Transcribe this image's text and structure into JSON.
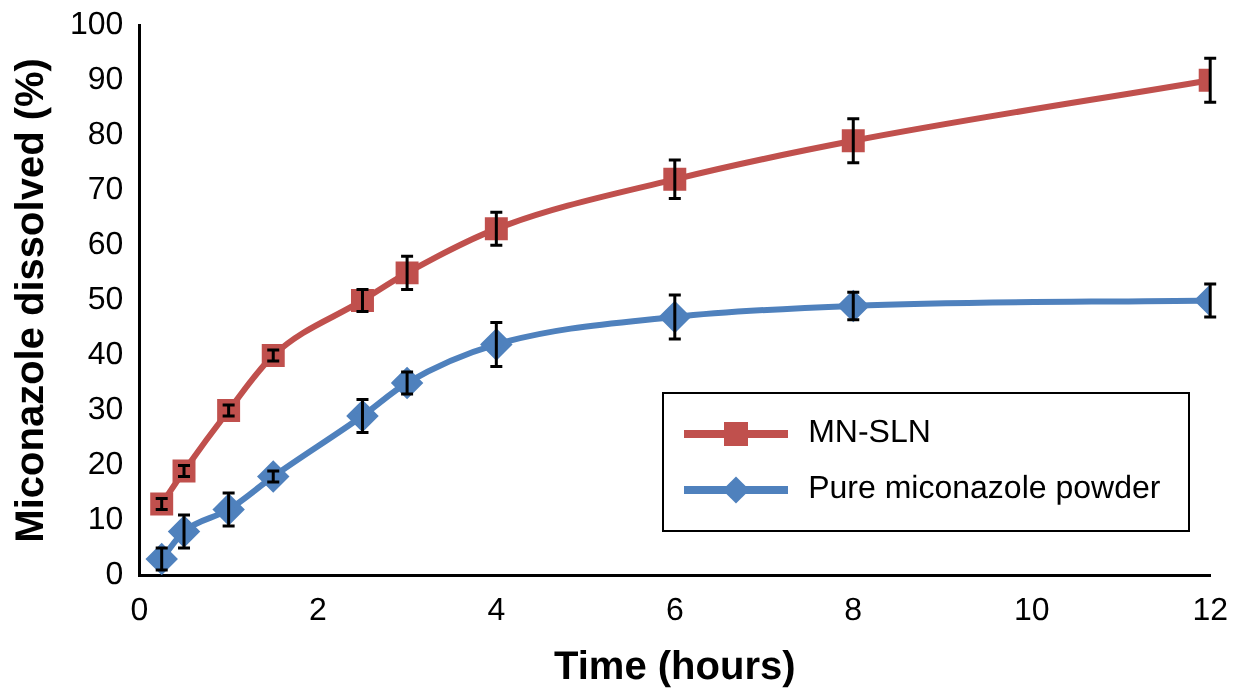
{
  "chart_data": {
    "type": "line",
    "xlabel": "Time (hours)",
    "ylabel": "Miconazole dissolved (%)",
    "x": [
      0.25,
      0.5,
      1,
      1.5,
      2.5,
      3,
      4,
      6,
      8,
      12
    ],
    "series": [
      {
        "name": "MN-SLN",
        "color": "#c0504d",
        "marker": "square",
        "values": [
          13,
          19,
          30,
          40,
          50,
          55,
          63,
          72,
          79,
          90
        ],
        "errors": [
          1,
          1,
          1,
          1,
          2,
          3,
          3,
          3.5,
          4,
          4
        ]
      },
      {
        "name": "Pure miconazole powder",
        "color": "#4f81bd",
        "marker": "diamond",
        "values": [
          3,
          8,
          12,
          18,
          29,
          35,
          42,
          47,
          49,
          50
        ],
        "errors": [
          2,
          3,
          3,
          1,
          3,
          2,
          4,
          4,
          2.5,
          3
        ]
      }
    ],
    "xlim": [
      0,
      12
    ],
    "xticks": [
      0,
      2,
      4,
      6,
      8,
      10,
      12
    ],
    "ylim": [
      0,
      100
    ],
    "yticks": [
      0,
      10,
      20,
      30,
      40,
      50,
      60,
      70,
      80,
      90,
      100
    ],
    "grid": false,
    "legend": "bottom right",
    "line_style": "solid"
  }
}
